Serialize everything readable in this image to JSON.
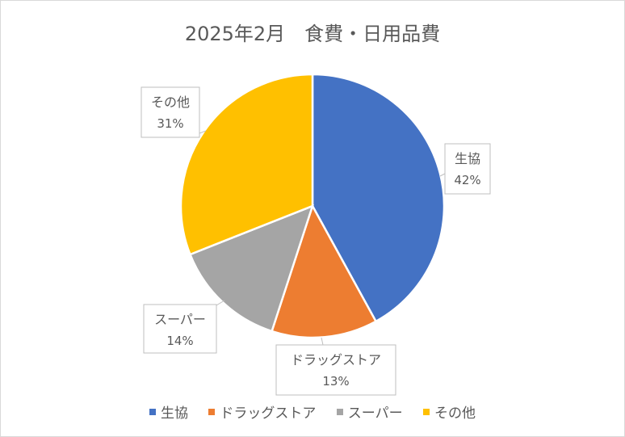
{
  "chart_data": {
    "type": "pie",
    "title": "2025年2月　食費・日用品費",
    "categories": [
      "生協",
      "ドラッグストア",
      "スーパー",
      "その他"
    ],
    "values": [
      42,
      13,
      14,
      31
    ],
    "value_labels": [
      "42%",
      "13%",
      "14%",
      "31%"
    ],
    "colors": [
      "#4472C4",
      "#ED7D31",
      "#A5A5A5",
      "#FFC000"
    ],
    "legend_position": "bottom",
    "data_labels": "category name and percentage in callout boxes"
  }
}
